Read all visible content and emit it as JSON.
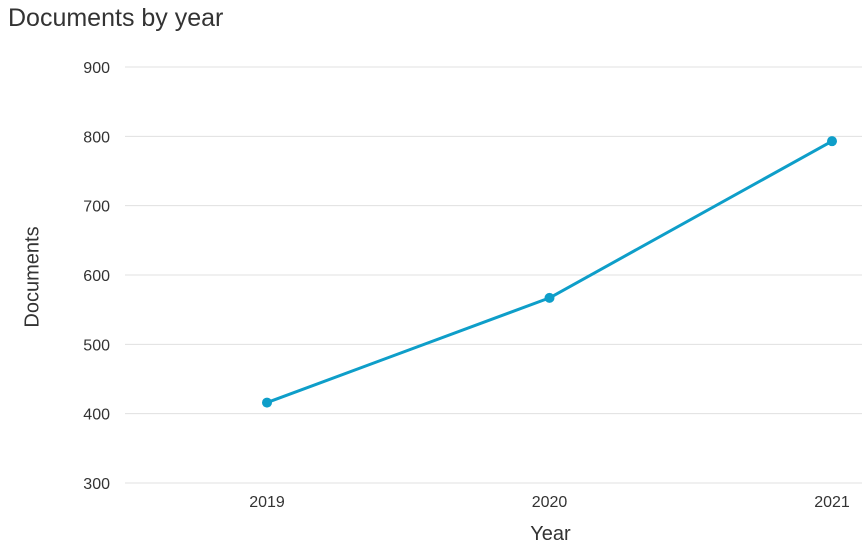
{
  "chart_data": {
    "type": "line",
    "title": "Documents by year",
    "xlabel": "Year",
    "ylabel": "Documents",
    "categories": [
      "2019",
      "2020",
      "2021"
    ],
    "series": [
      {
        "values": [
          416,
          567,
          793
        ],
        "color": "#0e9ec9"
      }
    ],
    "yticks": [
      "300",
      "400",
      "500",
      "600",
      "700",
      "800",
      "900"
    ],
    "ylim": [
      300,
      900
    ],
    "grid": true,
    "legend": "none"
  }
}
